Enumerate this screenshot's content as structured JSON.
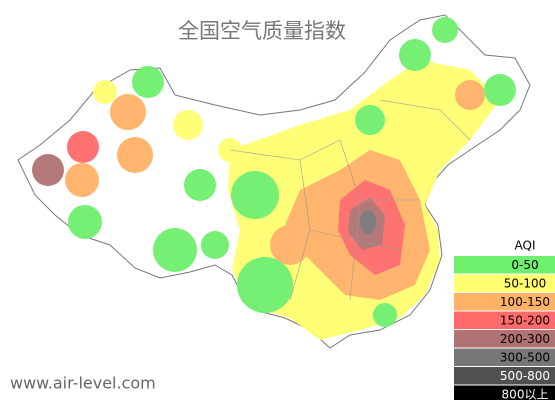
{
  "title": "全国空气质量指数",
  "legend": {
    "title": "AQI",
    "items": [
      {
        "label": "0-50",
        "color": "#6ef06e"
      },
      {
        "label": "50-100",
        "color": "#ffff70"
      },
      {
        "label": "100-150",
        "color": "#ffb266"
      },
      {
        "label": "150-200",
        "color": "#ff6b6b"
      },
      {
        "label": "200-300",
        "color": "#b07272"
      },
      {
        "label": "300-500",
        "color": "#777777"
      },
      {
        "label": "500-800",
        "color": "#505050"
      },
      {
        "label": "800以上",
        "color": "#000000"
      }
    ]
  },
  "watermark": "www.air-level.com"
}
